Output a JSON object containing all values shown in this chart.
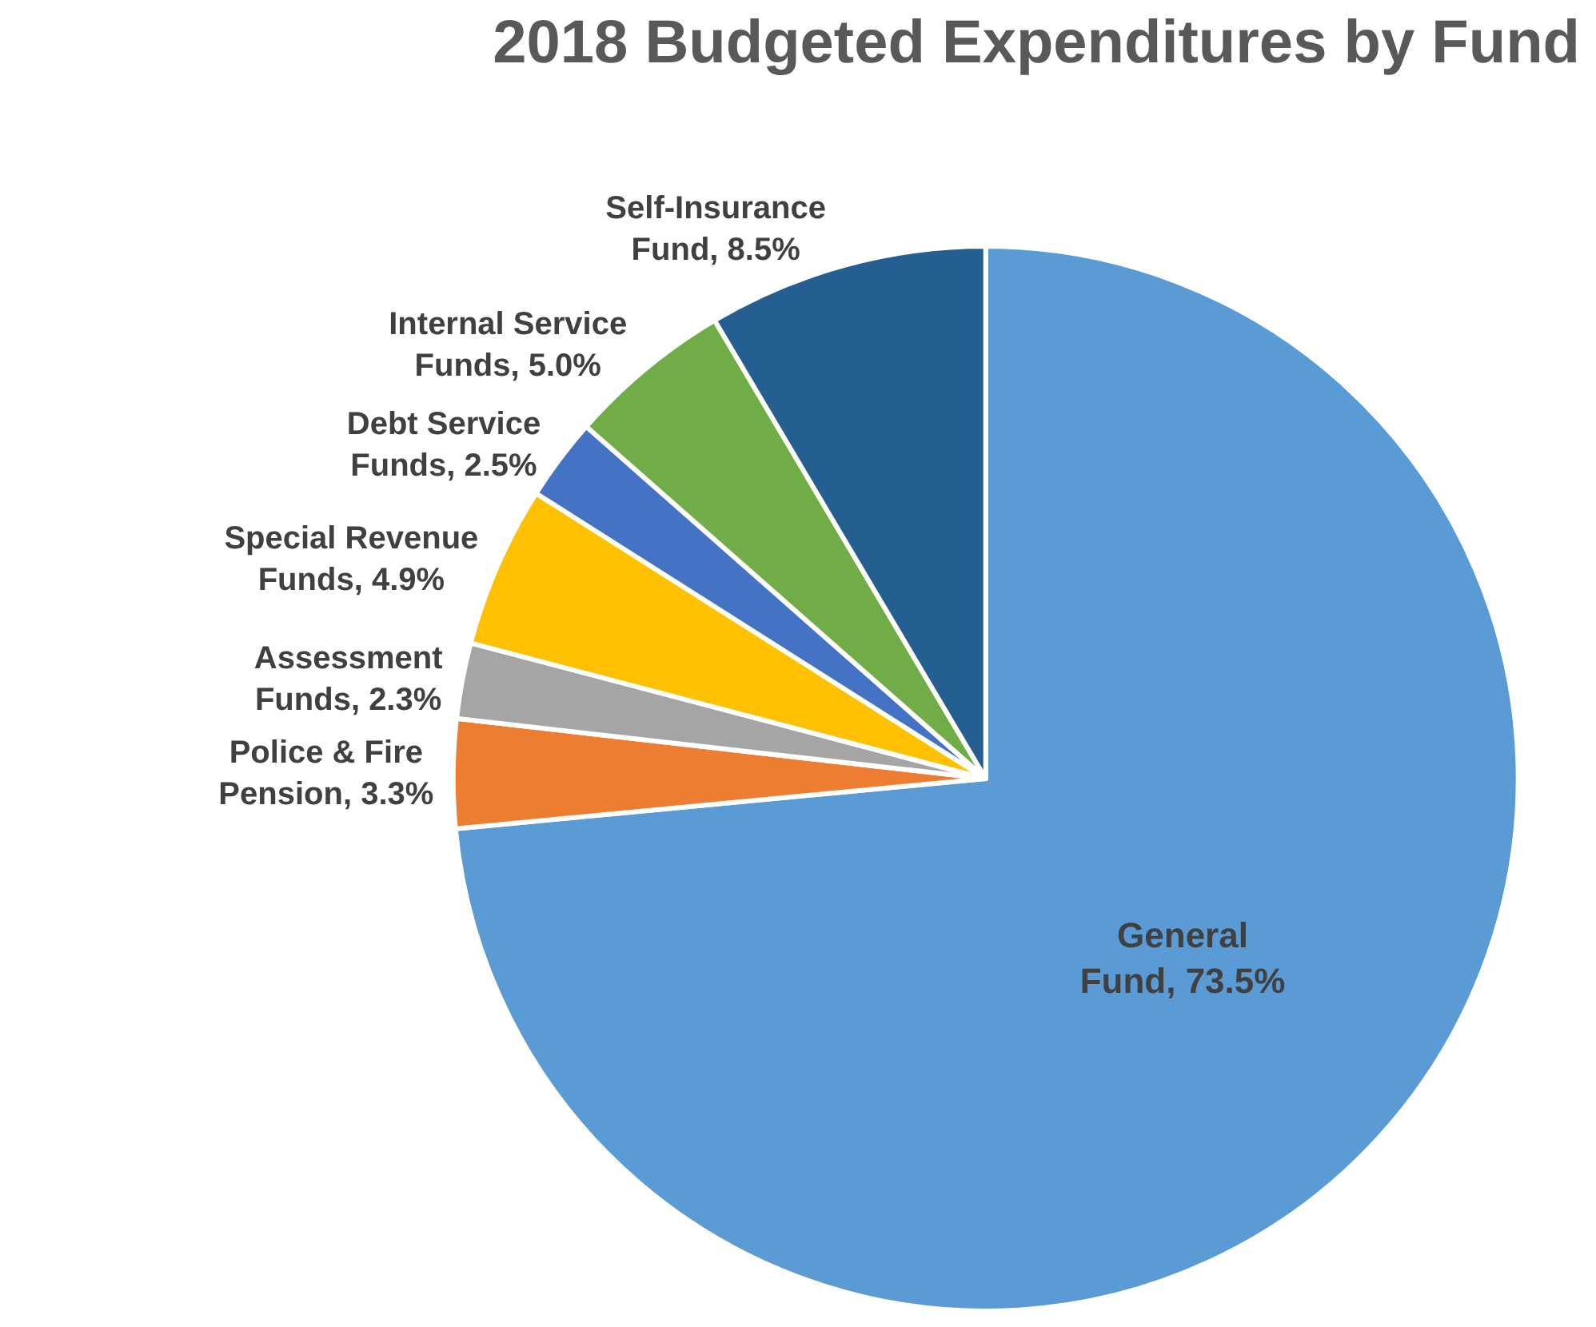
{
  "chart_data": {
    "type": "pie",
    "title": "2018 Budgeted Expenditures by Fund",
    "categories": [
      "General Fund",
      "Police & Fire Pension",
      "Assessment Funds",
      "Special Revenue Funds",
      "Debt Service Funds",
      "Internal Service Funds",
      "Self-Insurance Fund"
    ],
    "values": [
      73.5,
      3.3,
      2.3,
      4.9,
      2.5,
      5.0,
      8.5
    ],
    "value_labels": [
      "73.5%",
      "3.3%",
      "2.3%",
      "4.9%",
      "2.5%",
      "5.0%",
      "8.5%"
    ],
    "colors": [
      "#5b9bd5",
      "#ed7d31",
      "#a5a5a5",
      "#ffc000",
      "#4472c4",
      "#70ad47",
      "#255e91"
    ],
    "legend": false
  }
}
